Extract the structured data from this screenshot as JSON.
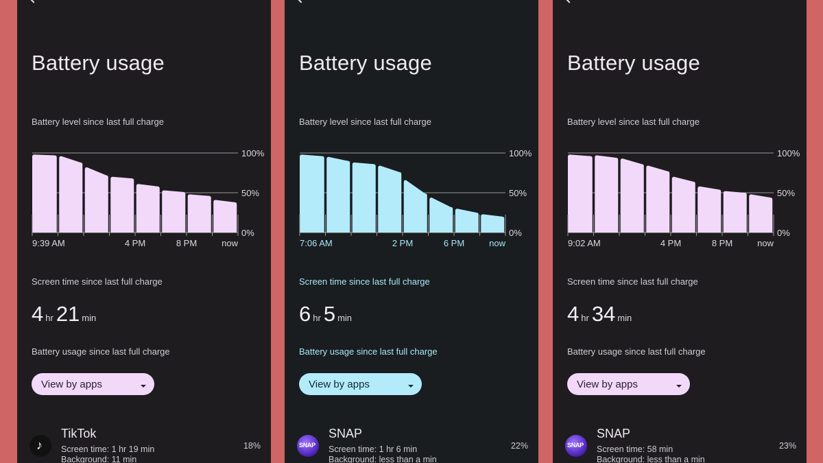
{
  "phones": [
    {
      "title": "Battery usage",
      "level_label": "Battery level since last full charge",
      "y_ticks": [
        "100%",
        "50%",
        "0%"
      ],
      "x_ticks": [
        "9:39 AM",
        "4 PM",
        "8 PM",
        "now"
      ],
      "screen_label": "Screen time since last full charge",
      "screen_hr": "4",
      "hr_unit": "hr",
      "screen_min": "21",
      "min_unit": "min",
      "usage_label": "Battery usage since last full charge",
      "dropdown": "View by apps",
      "app": {
        "icon": "tiktok-icon",
        "name": "TikTok",
        "screen": "Screen time: 1 hr 19 min",
        "background": "Background: 11 min",
        "percent": "18%"
      },
      "bar_color": "#f2d9fa"
    },
    {
      "title": "Battery usage",
      "level_label": "Battery level since last full charge",
      "y_ticks": [
        "100%",
        "50%",
        "0%"
      ],
      "x_ticks": [
        "7:06 AM",
        "2 PM",
        "6 PM",
        "now"
      ],
      "screen_label": "Screen time since last full charge",
      "screen_hr": "6",
      "hr_unit": "hr",
      "screen_min": "5",
      "min_unit": "min",
      "usage_label": "Battery usage since last full charge",
      "dropdown": "View by apps",
      "app": {
        "icon": "snap-icon",
        "name": "SNAP",
        "screen": "Screen time: 1 hr 6 min",
        "background": "Background: less than a min",
        "percent": "22%"
      },
      "bar_color": "#b3ebfb"
    },
    {
      "title": "Battery usage",
      "level_label": "Battery level since last full charge",
      "y_ticks": [
        "100%",
        "50%",
        "0%"
      ],
      "x_ticks": [
        "9:02 AM",
        "4 PM",
        "8 PM",
        "now"
      ],
      "screen_label": "Screen time since last full charge",
      "screen_hr": "4",
      "hr_unit": "hr",
      "screen_min": "34",
      "min_unit": "min",
      "usage_label": "Battery usage since last full charge",
      "dropdown": "View by apps",
      "app": {
        "icon": "snap-icon",
        "name": "SNAP",
        "screen": "Screen time: 58 min",
        "background": "Background: less than a min",
        "percent": "23%"
      },
      "bar_color": "#f2d9fa"
    }
  ],
  "chart_data": [
    {
      "type": "area",
      "series": [
        {
          "values": [
            [
              98,
              97
            ],
            [
              96,
              88
            ],
            [
              82,
              72
            ],
            [
              70,
              68
            ],
            [
              61,
              58
            ],
            [
              53,
              51
            ],
            [
              48,
              46
            ],
            [
              41,
              38
            ]
          ]
        }
      ],
      "ylim": [
        0,
        100
      ]
    },
    {
      "type": "area",
      "series": [
        {
          "values": [
            [
              98,
              96
            ],
            [
              95,
              90
            ],
            [
              88,
              86
            ],
            [
              84,
              76
            ],
            [
              66,
              49
            ],
            [
              44,
              32
            ],
            [
              30,
              25
            ],
            [
              23,
              20
            ]
          ]
        }
      ],
      "ylim": [
        0,
        100
      ]
    },
    {
      "type": "area",
      "series": [
        {
          "values": [
            [
              98,
              96
            ],
            [
              97,
              94
            ],
            [
              93,
              86
            ],
            [
              84,
              77
            ],
            [
              70,
              64
            ],
            [
              58,
              54
            ],
            [
              52,
              50
            ],
            [
              48,
              44
            ]
          ]
        }
      ],
      "ylim": [
        0,
        100
      ]
    }
  ]
}
